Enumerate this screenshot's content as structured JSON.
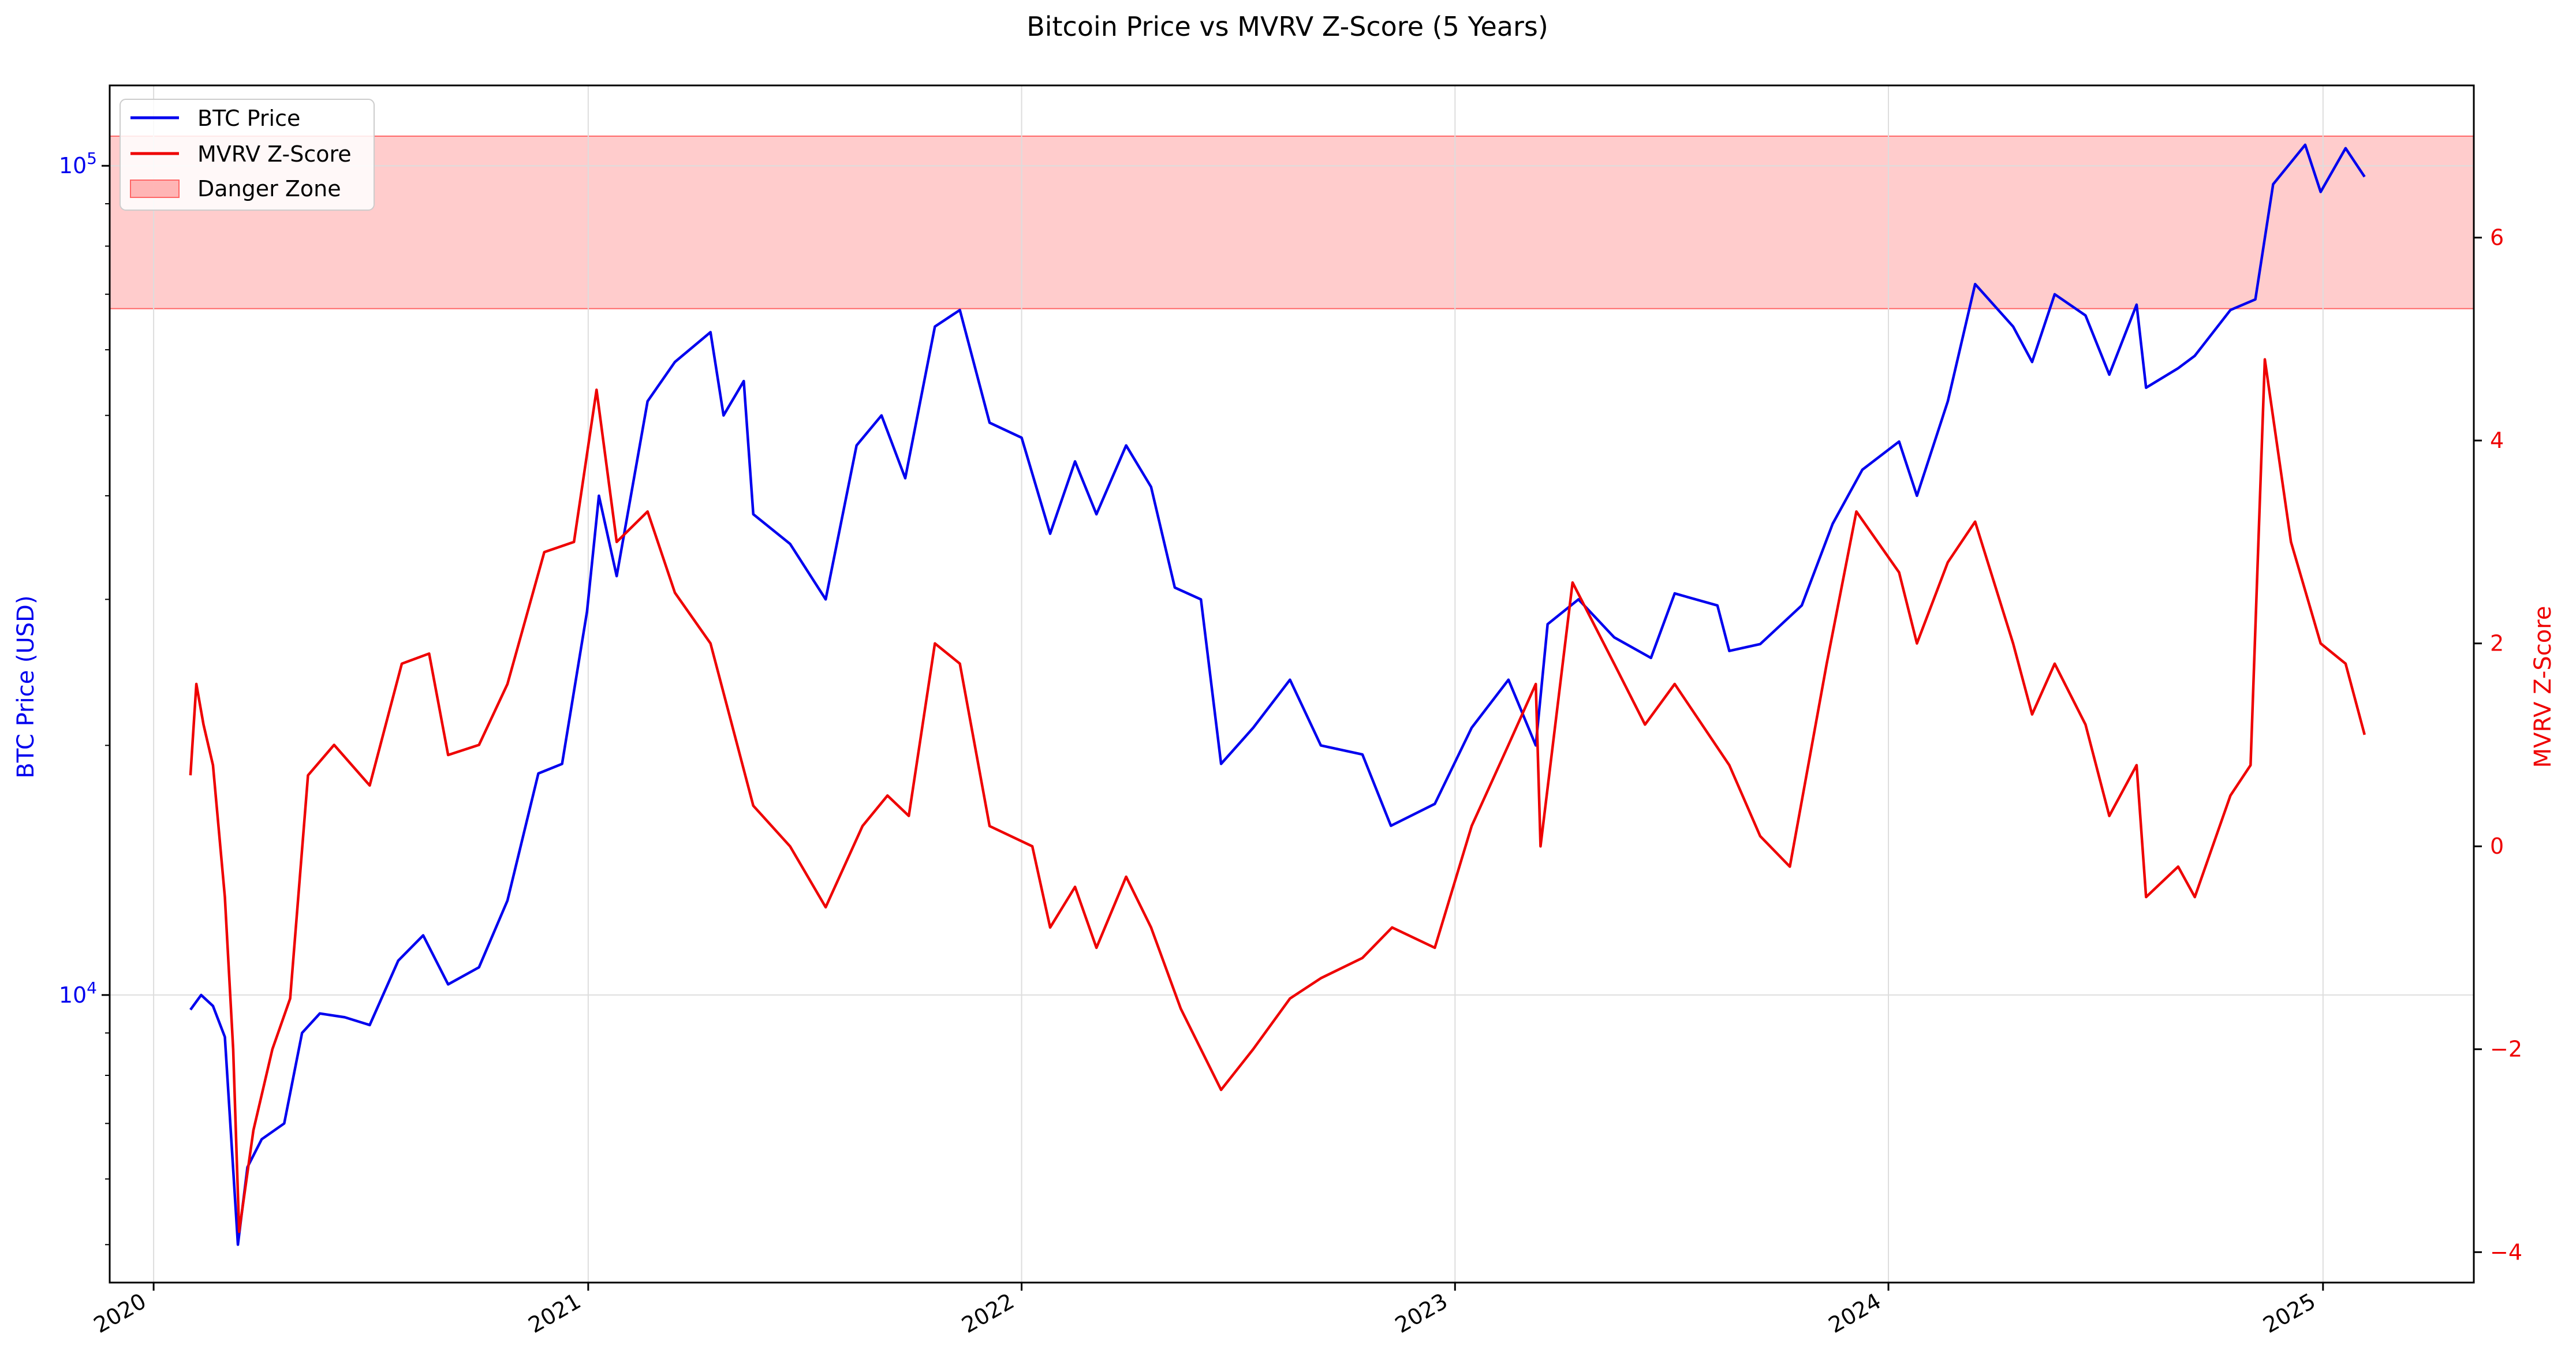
{
  "chart_data": {
    "type": "line",
    "title": "Bitcoin Price vs MVRV Z-Score (5 Years)",
    "xlabel": "",
    "ylabel_left": "BTC Price (USD)",
    "ylabel_right": "MVRV Z-Score",
    "y_left_scale": "log",
    "y_left_ticks": [
      {
        "value": 10000,
        "base": "10",
        "exp": "4"
      },
      {
        "value": 100000,
        "base": "10",
        "exp": "5"
      }
    ],
    "y_left_lim": [
      4500,
      125000
    ],
    "y_right_ticks": [
      "−4",
      "−2",
      "0",
      "2",
      "4",
      "6"
    ],
    "y_right_lim": [
      -4.3,
      7.5
    ],
    "x_ticks": [
      "2020",
      "2021",
      "2022",
      "2023",
      "2024",
      "2025"
    ],
    "x_lim": [
      "2019-11-25",
      "2025-05-08"
    ],
    "grid": true,
    "legend_position": "upper-left",
    "danger_zone": {
      "label": "Danger Zone",
      "y_from": 5.3,
      "y_to": 7.0,
      "color": "#ff9999"
    },
    "colors": {
      "btc": "#0000ee",
      "mvrv": "#ee0000",
      "left_axis": "#0000ee",
      "right_axis": "#ee0000"
    },
    "series": [
      {
        "name": "BTC Price",
        "axis": "left",
        "color": "#0000ee",
        "points": [
          [
            "2020-02-01",
            9600
          ],
          [
            "2020-02-10",
            10000
          ],
          [
            "2020-02-20",
            9700
          ],
          [
            "2020-03-01",
            8900
          ],
          [
            "2020-03-12",
            5000
          ],
          [
            "2020-03-20",
            6200
          ],
          [
            "2020-04-01",
            6700
          ],
          [
            "2020-04-20",
            7000
          ],
          [
            "2020-05-05",
            9000
          ],
          [
            "2020-05-20",
            9500
          ],
          [
            "2020-06-10",
            9400
          ],
          [
            "2020-07-01",
            9200
          ],
          [
            "2020-07-25",
            11000
          ],
          [
            "2020-08-15",
            11800
          ],
          [
            "2020-09-05",
            10300
          ],
          [
            "2020-10-01",
            10800
          ],
          [
            "2020-10-25",
            13000
          ],
          [
            "2020-11-20",
            18500
          ],
          [
            "2020-12-10",
            19000
          ],
          [
            "2020-12-31",
            29000
          ],
          [
            "2021-01-10",
            40000
          ],
          [
            "2021-01-25",
            32000
          ],
          [
            "2021-02-20",
            52000
          ],
          [
            "2021-03-15",
            58000
          ],
          [
            "2021-04-14",
            63000
          ],
          [
            "2021-04-25",
            50000
          ],
          [
            "2021-05-12",
            55000
          ],
          [
            "2021-05-20",
            38000
          ],
          [
            "2021-06-20",
            35000
          ],
          [
            "2021-07-20",
            30000
          ],
          [
            "2021-08-15",
            46000
          ],
          [
            "2021-09-05",
            50000
          ],
          [
            "2021-09-25",
            42000
          ],
          [
            "2021-10-20",
            64000
          ],
          [
            "2021-11-10",
            67000
          ],
          [
            "2021-12-05",
            49000
          ],
          [
            "2022-01-01",
            47000
          ],
          [
            "2022-01-25",
            36000
          ],
          [
            "2022-02-15",
            44000
          ],
          [
            "2022-03-05",
            38000
          ],
          [
            "2022-03-30",
            46000
          ],
          [
            "2022-04-20",
            41000
          ],
          [
            "2022-05-10",
            31000
          ],
          [
            "2022-06-01",
            30000
          ],
          [
            "2022-06-18",
            19000
          ],
          [
            "2022-07-15",
            21000
          ],
          [
            "2022-08-15",
            24000
          ],
          [
            "2022-09-10",
            20000
          ],
          [
            "2022-10-15",
            19500
          ],
          [
            "2022-11-08",
            16000
          ],
          [
            "2022-12-15",
            17000
          ],
          [
            "2023-01-15",
            21000
          ],
          [
            "2023-02-15",
            24000
          ],
          [
            "2023-03-10",
            20000
          ],
          [
            "2023-03-20",
            28000
          ],
          [
            "2023-04-15",
            30000
          ],
          [
            "2023-05-15",
            27000
          ],
          [
            "2023-06-15",
            25500
          ],
          [
            "2023-07-05",
            30500
          ],
          [
            "2023-08-10",
            29500
          ],
          [
            "2023-08-20",
            26000
          ],
          [
            "2023-09-15",
            26500
          ],
          [
            "2023-10-20",
            29500
          ],
          [
            "2023-11-15",
            37000
          ],
          [
            "2023-12-10",
            43000
          ],
          [
            "2024-01-10",
            46500
          ],
          [
            "2024-01-25",
            40000
          ],
          [
            "2024-02-20",
            52000
          ],
          [
            "2024-03-14",
            72000
          ],
          [
            "2024-04-15",
            64000
          ],
          [
            "2024-05-01",
            58000
          ],
          [
            "2024-05-20",
            70000
          ],
          [
            "2024-06-15",
            66000
          ],
          [
            "2024-07-05",
            56000
          ],
          [
            "2024-07-28",
            68000
          ],
          [
            "2024-08-05",
            54000
          ],
          [
            "2024-09-01",
            57000
          ],
          [
            "2024-09-15",
            59000
          ],
          [
            "2024-10-15",
            67000
          ],
          [
            "2024-11-05",
            69000
          ],
          [
            "2024-11-20",
            95000
          ],
          [
            "2024-12-17",
            106000
          ],
          [
            "2024-12-30",
            93000
          ],
          [
            "2025-01-20",
            105000
          ],
          [
            "2025-02-05",
            97000
          ]
        ]
      },
      {
        "name": "MVRV Z-Score",
        "axis": "right",
        "color": "#ee0000",
        "points": [
          [
            "2020-02-01",
            0.7
          ],
          [
            "2020-02-06",
            1.6
          ],
          [
            "2020-02-12",
            1.2
          ],
          [
            "2020-02-20",
            0.8
          ],
          [
            "2020-03-01",
            -0.5
          ],
          [
            "2020-03-08",
            -2.0
          ],
          [
            "2020-03-13",
            -3.8
          ],
          [
            "2020-03-25",
            -2.8
          ],
          [
            "2020-04-10",
            -2.0
          ],
          [
            "2020-04-25",
            -1.5
          ],
          [
            "2020-05-10",
            0.7
          ],
          [
            "2020-06-01",
            1.0
          ],
          [
            "2020-07-01",
            0.6
          ],
          [
            "2020-07-28",
            1.8
          ],
          [
            "2020-08-20",
            1.9
          ],
          [
            "2020-09-05",
            0.9
          ],
          [
            "2020-10-01",
            1.0
          ],
          [
            "2020-10-25",
            1.6
          ],
          [
            "2020-11-25",
            2.9
          ],
          [
            "2020-12-20",
            3.0
          ],
          [
            "2021-01-08",
            4.5
          ],
          [
            "2021-01-25",
            3.0
          ],
          [
            "2021-02-20",
            3.3
          ],
          [
            "2021-03-15",
            2.5
          ],
          [
            "2021-04-14",
            2.0
          ],
          [
            "2021-05-20",
            0.4
          ],
          [
            "2021-06-20",
            0.0
          ],
          [
            "2021-07-20",
            -0.6
          ],
          [
            "2021-08-20",
            0.2
          ],
          [
            "2021-09-10",
            0.5
          ],
          [
            "2021-09-28",
            0.3
          ],
          [
            "2021-10-20",
            2.0
          ],
          [
            "2021-11-10",
            1.8
          ],
          [
            "2021-12-05",
            0.2
          ],
          [
            "2022-01-10",
            0.0
          ],
          [
            "2022-01-25",
            -0.8
          ],
          [
            "2022-02-15",
            -0.4
          ],
          [
            "2022-03-05",
            -1.0
          ],
          [
            "2022-03-30",
            -0.3
          ],
          [
            "2022-04-20",
            -0.8
          ],
          [
            "2022-05-15",
            -1.6
          ],
          [
            "2022-06-18",
            -2.4
          ],
          [
            "2022-07-15",
            -2.0
          ],
          [
            "2022-08-15",
            -1.5
          ],
          [
            "2022-09-10",
            -1.3
          ],
          [
            "2022-10-15",
            -1.1
          ],
          [
            "2022-11-09",
            -0.8
          ],
          [
            "2022-12-15",
            -1.0
          ],
          [
            "2023-01-15",
            0.2
          ],
          [
            "2023-02-15",
            1.0
          ],
          [
            "2023-03-10",
            1.6
          ],
          [
            "2023-03-14",
            0.0
          ],
          [
            "2023-04-10",
            2.6
          ],
          [
            "2023-05-15",
            1.8
          ],
          [
            "2023-06-10",
            1.2
          ],
          [
            "2023-07-05",
            1.6
          ],
          [
            "2023-08-20",
            0.8
          ],
          [
            "2023-09-15",
            0.1
          ],
          [
            "2023-10-10",
            -0.2
          ],
          [
            "2023-11-10",
            1.8
          ],
          [
            "2023-12-05",
            3.3
          ],
          [
            "2024-01-10",
            2.7
          ],
          [
            "2024-01-25",
            2.0
          ],
          [
            "2024-02-20",
            2.8
          ],
          [
            "2024-03-14",
            3.2
          ],
          [
            "2024-04-15",
            2.0
          ],
          [
            "2024-05-01",
            1.3
          ],
          [
            "2024-05-20",
            1.8
          ],
          [
            "2024-06-15",
            1.2
          ],
          [
            "2024-07-05",
            0.3
          ],
          [
            "2024-07-28",
            0.8
          ],
          [
            "2024-08-05",
            -0.5
          ],
          [
            "2024-09-01",
            -0.2
          ],
          [
            "2024-09-15",
            -0.5
          ],
          [
            "2024-10-15",
            0.5
          ],
          [
            "2024-11-01",
            0.8
          ],
          [
            "2024-11-13",
            4.8
          ],
          [
            "2024-12-05",
            3.0
          ],
          [
            "2024-12-30",
            2.0
          ],
          [
            "2025-01-20",
            1.8
          ],
          [
            "2025-02-05",
            1.1
          ]
        ]
      }
    ]
  }
}
